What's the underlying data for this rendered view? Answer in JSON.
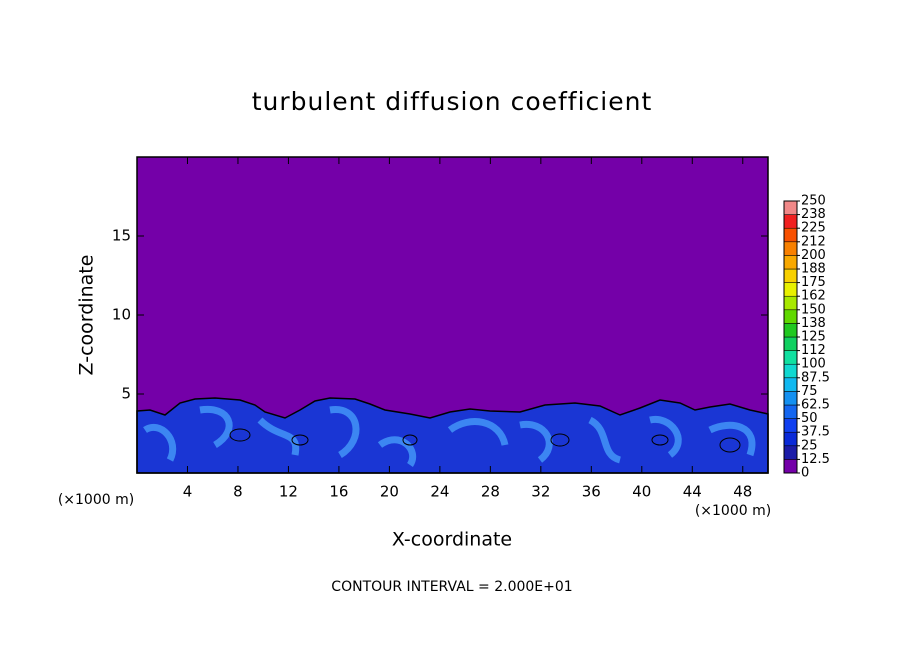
{
  "chart_data": {
    "type": "contour",
    "title": "turbulent diffusion coefficient",
    "x_label": "X-coordinate",
    "y_label": "Z-coordinate",
    "x_unit": "(×1000 m)",
    "xlim": [
      0,
      50
    ],
    "xticks": [
      4,
      8,
      12,
      16,
      20,
      24,
      28,
      32,
      36,
      40,
      44,
      48
    ],
    "ylim": [
      0,
      20
    ],
    "yticks": [
      5,
      10,
      15
    ],
    "colorbar": {
      "ticks": [
        0,
        12.5,
        25,
        37.5,
        50,
        62.5,
        75,
        87.5,
        100,
        {
          "value": 112.5,
          "label": "112"
        },
        125,
        {
          "value": 137.5,
          "label": "138"
        },
        150,
        {
          "value": 162.5,
          "label": "162"
        },
        175,
        {
          "value": 187.5,
          "label": "188"
        },
        200,
        {
          "value": 212.5,
          "label": "212"
        },
        225,
        {
          "value": 237.5,
          "label": "238"
        },
        250
      ],
      "colors": [
        "#7400a8",
        "#1c1ca8",
        "#0a2ad8",
        "#1040f0",
        "#1466f0",
        "#1490f0",
        "#10b8f0",
        "#10d8d0",
        "#10e0a0",
        "#10d060",
        "#20c820",
        "#60d800",
        "#a8e800",
        "#e8f000",
        "#f8d000",
        "#f8a800",
        "#f88000",
        "#f85000",
        "#f02020",
        "#f08888"
      ]
    },
    "annotation": "CONTOUR INTERVAL = 2.000E+01"
  }
}
